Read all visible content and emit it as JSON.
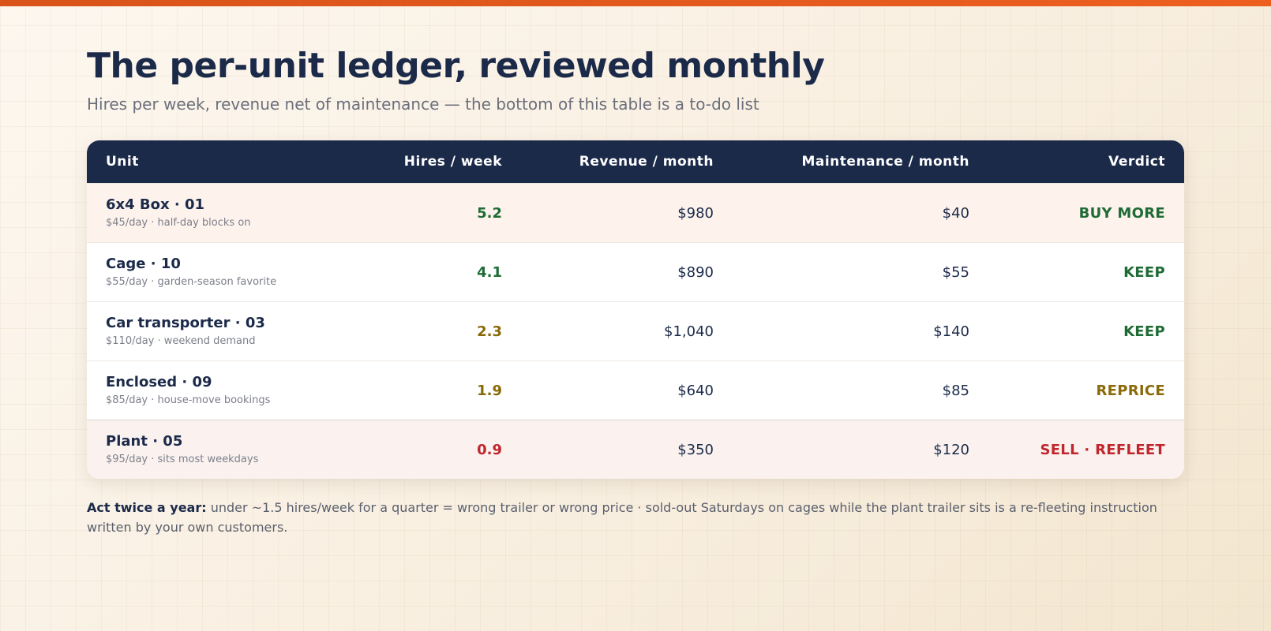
{
  "header": {
    "title": "The per-unit ledger, reviewed monthly",
    "subtitle": "Hires per week, revenue net of maintenance — the bottom of this table is a to-do list"
  },
  "table": {
    "columns": [
      "Unit",
      "Hires / week",
      "Revenue / month",
      "Maintenance / month",
      "Verdict"
    ],
    "rows": [
      {
        "unit": "6x4 Box · 01",
        "meta": "$45/day · half-day blocks on",
        "hires": "5.2",
        "revenue": "$980",
        "maintenance": "$40",
        "verdict": "BUY MORE"
      },
      {
        "unit": "Cage · 10",
        "meta": "$55/day · garden-season favorite",
        "hires": "4.1",
        "revenue": "$890",
        "maintenance": "$55",
        "verdict": "KEEP"
      },
      {
        "unit": "Car transporter · 03",
        "meta": "$110/day · weekend demand",
        "hires": "2.3",
        "revenue": "$1,040",
        "maintenance": "$140",
        "verdict": "KEEP"
      },
      {
        "unit": "Enclosed · 09",
        "meta": "$85/day · house-move bookings",
        "hires": "1.9",
        "revenue": "$640",
        "maintenance": "$85",
        "verdict": "REPRICE"
      },
      {
        "unit": "Plant · 05",
        "meta": "$95/day · sits most weekdays",
        "hires": "0.9",
        "revenue": "$350",
        "maintenance": "$120",
        "verdict": "SELL · REFLEET"
      }
    ]
  },
  "footnote": {
    "lead": "Act twice a year:",
    "text": " under ~1.5 hires/week for a quarter = wrong trailer or wrong price · sold-out Saturdays on cages while the plant trailer sits is a re-fleeting instruction written by your own customers."
  },
  "colors": {
    "accent_bar": "#e0561c",
    "header_bg": "#1c2a4a",
    "good": "#1f6b35",
    "warn": "#8a6a08",
    "bad": "#c0272d"
  }
}
